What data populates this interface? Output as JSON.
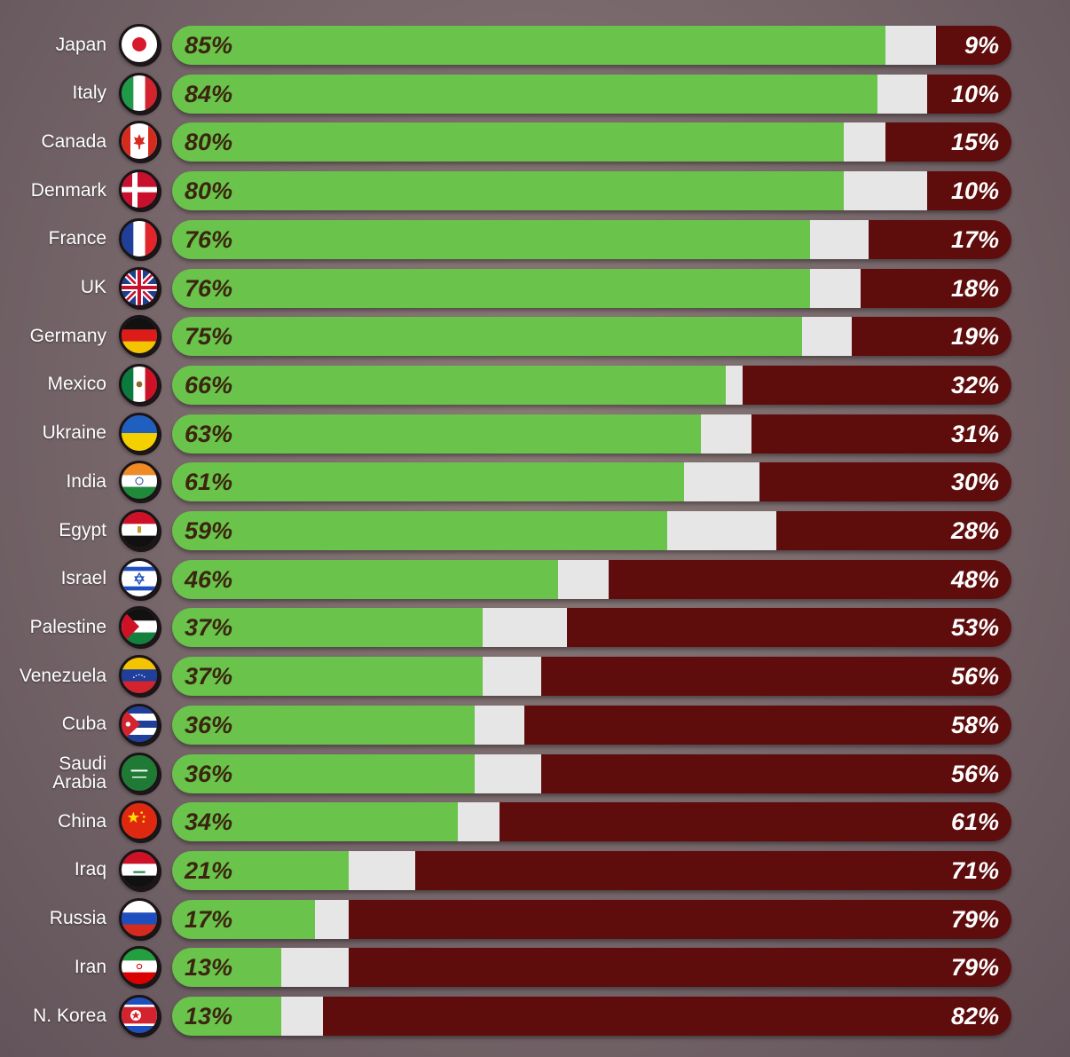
{
  "chart_data": {
    "type": "bar",
    "orientation": "horizontal-stacked",
    "title": "",
    "xlabel": "",
    "ylabel": "",
    "xlim": [
      0,
      100
    ],
    "grid": false,
    "categories": [
      "Japan",
      "Italy",
      "Canada",
      "Denmark",
      "France",
      "UK",
      "Germany",
      "Mexico",
      "Ukraine",
      "India",
      "Egypt",
      "Israel",
      "Palestine",
      "Venezuela",
      "Cuba",
      "Saudi\nArabia",
      "China",
      "Iraq",
      "Russia",
      "Iran",
      "N. Korea"
    ],
    "series": [
      {
        "values": [
          85,
          84,
          80,
          80,
          76,
          76,
          75,
          66,
          63,
          61,
          59,
          46,
          37,
          37,
          36,
          36,
          34,
          21,
          17,
          13,
          13
        ],
        "color": "#6ac34a"
      },
      {
        "values": [
          6,
          6,
          5,
          10,
          7,
          6,
          6,
          2,
          6,
          9,
          13,
          6,
          10,
          7,
          6,
          8,
          5,
          8,
          4,
          8,
          5
        ],
        "color": "#e6e6e6"
      },
      {
        "values": [
          9,
          10,
          15,
          10,
          17,
          18,
          19,
          32,
          31,
          30,
          28,
          48,
          53,
          56,
          58,
          56,
          61,
          71,
          79,
          79,
          82
        ],
        "color": "#5e0c0c"
      }
    ],
    "value_labels": {
      "yes": [
        "85%",
        "84%",
        "80%",
        "80%",
        "76%",
        "76%",
        "75%",
        "66%",
        "63%",
        "61%",
        "59%",
        "46%",
        "37%",
        "37%",
        "36%",
        "36%",
        "34%",
        "21%",
        "17%",
        "13%",
        "13%"
      ],
      "no": [
        "9%",
        "10%",
        "15%",
        "10%",
        "17%",
        "18%",
        "19%",
        "32%",
        "31%",
        "30%",
        "28%",
        "48%",
        "53%",
        "56%",
        "58%",
        "56%",
        "61%",
        "71%",
        "79%",
        "79%",
        "82%"
      ]
    },
    "flag_icons": [
      "japan-flag-icon",
      "italy-flag-icon",
      "canada-flag-icon",
      "denmark-flag-icon",
      "france-flag-icon",
      "uk-flag-icon",
      "germany-flag-icon",
      "mexico-flag-icon",
      "ukraine-flag-icon",
      "india-flag-icon",
      "egypt-flag-icon",
      "israel-flag-icon",
      "palestine-flag-icon",
      "venezuela-flag-icon",
      "cuba-flag-icon",
      "saudi-arabia-flag-icon",
      "china-flag-icon",
      "iraq-flag-icon",
      "russia-flag-icon",
      "iran-flag-icon",
      "north-korea-flag-icon"
    ]
  }
}
